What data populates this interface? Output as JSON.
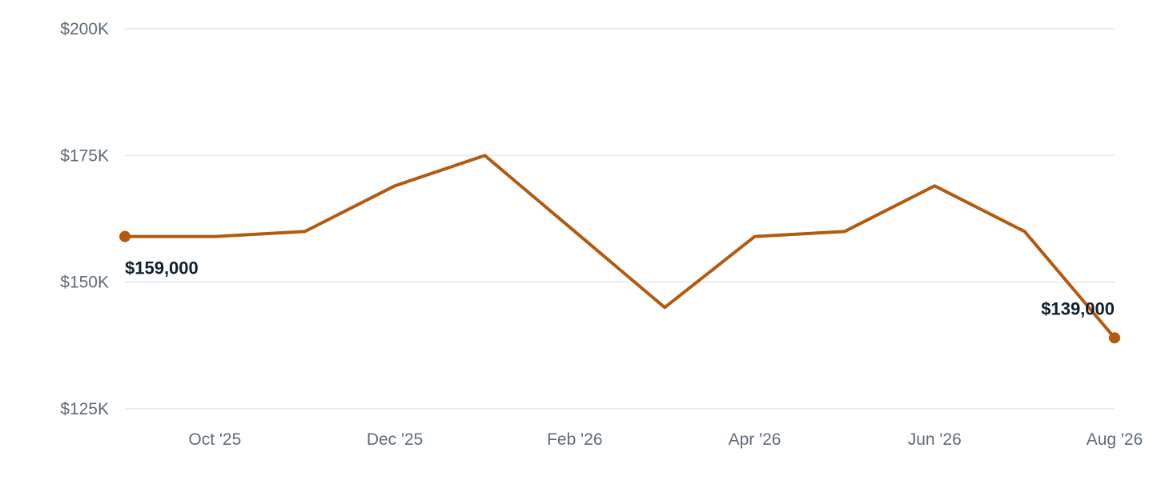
{
  "chart_data": {
    "type": "line",
    "x": [
      "2025-09",
      "2025-10",
      "2025-11",
      "2025-12",
      "2026-01",
      "2026-02",
      "2026-03",
      "2026-04",
      "2026-05",
      "2026-06",
      "2026-07",
      "2026-08"
    ],
    "series": [
      {
        "values": [
          159000,
          159000,
          160000,
          169000,
          175000,
          160000,
          145000,
          159000,
          160000,
          169000,
          160000,
          139000
        ],
        "color": "#b35a0f"
      }
    ],
    "xticks": [
      {
        "x": "2025-10",
        "label": "Oct '25"
      },
      {
        "x": "2025-12",
        "label": "Dec '25"
      },
      {
        "x": "2026-02",
        "label": "Feb '26"
      },
      {
        "x": "2026-04",
        "label": "Apr '26"
      },
      {
        "x": "2026-06",
        "label": "Jun '26"
      },
      {
        "x": "2026-08",
        "label": "Aug '26"
      }
    ],
    "yticks": [
      {
        "value": 125000,
        "label": "$125K"
      },
      {
        "value": 150000,
        "label": "$150K"
      },
      {
        "value": 175000,
        "label": "$175K"
      },
      {
        "value": 200000,
        "label": "$200K"
      }
    ],
    "ylim": [
      125000,
      200000
    ],
    "annotations": [
      {
        "x": "2025-09",
        "value": 159000,
        "label": "$159,000"
      },
      {
        "x": "2026-08",
        "value": 139000,
        "label": "$139,000"
      }
    ],
    "grid": true,
    "gridline_color": "#e5e7eb",
    "title": "",
    "xlabel": "",
    "ylabel": ""
  }
}
